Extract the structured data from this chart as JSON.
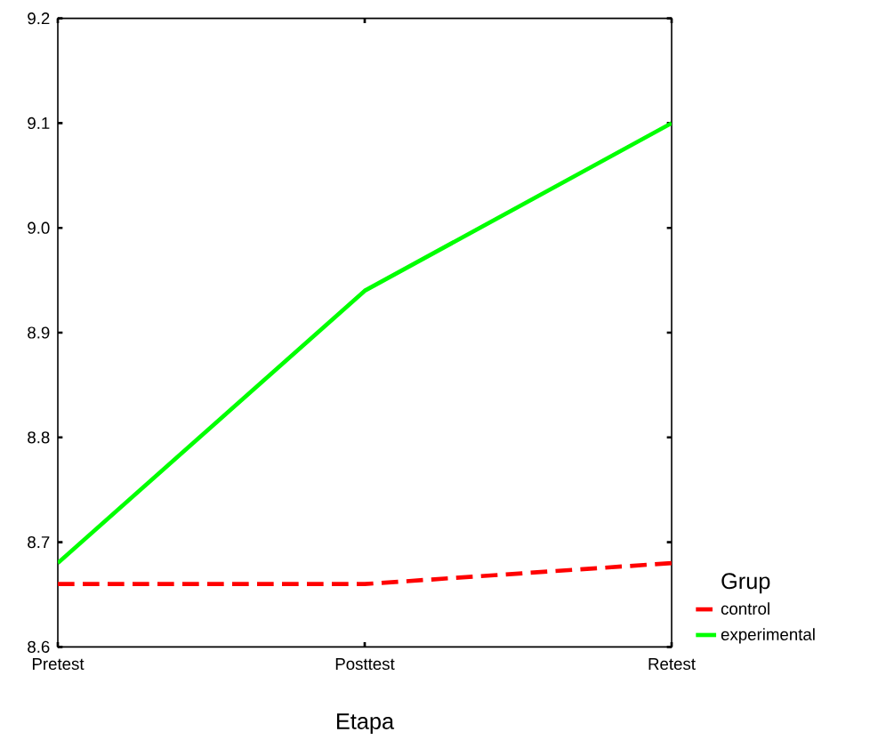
{
  "chart_data": {
    "type": "line",
    "xlabel": "Etapa",
    "legend_title": "Grup",
    "legend": "right",
    "categories": [
      "Pretest",
      "Posttest",
      "Retest"
    ],
    "series": [
      {
        "name": "control",
        "color": "#ff0000",
        "line_style": "dashed",
        "values": [
          8.66,
          8.66,
          8.68
        ]
      },
      {
        "name": "experimental",
        "color": "#00ff00",
        "line_style": "solid",
        "values": [
          8.68,
          8.94,
          9.1
        ]
      }
    ],
    "ylim": [
      8.6,
      9.2
    ],
    "yticks": [
      8.6,
      8.7,
      8.8,
      8.9,
      {
        "value": 9.0,
        "label": "9.0"
      },
      9.1,
      9.2
    ]
  }
}
